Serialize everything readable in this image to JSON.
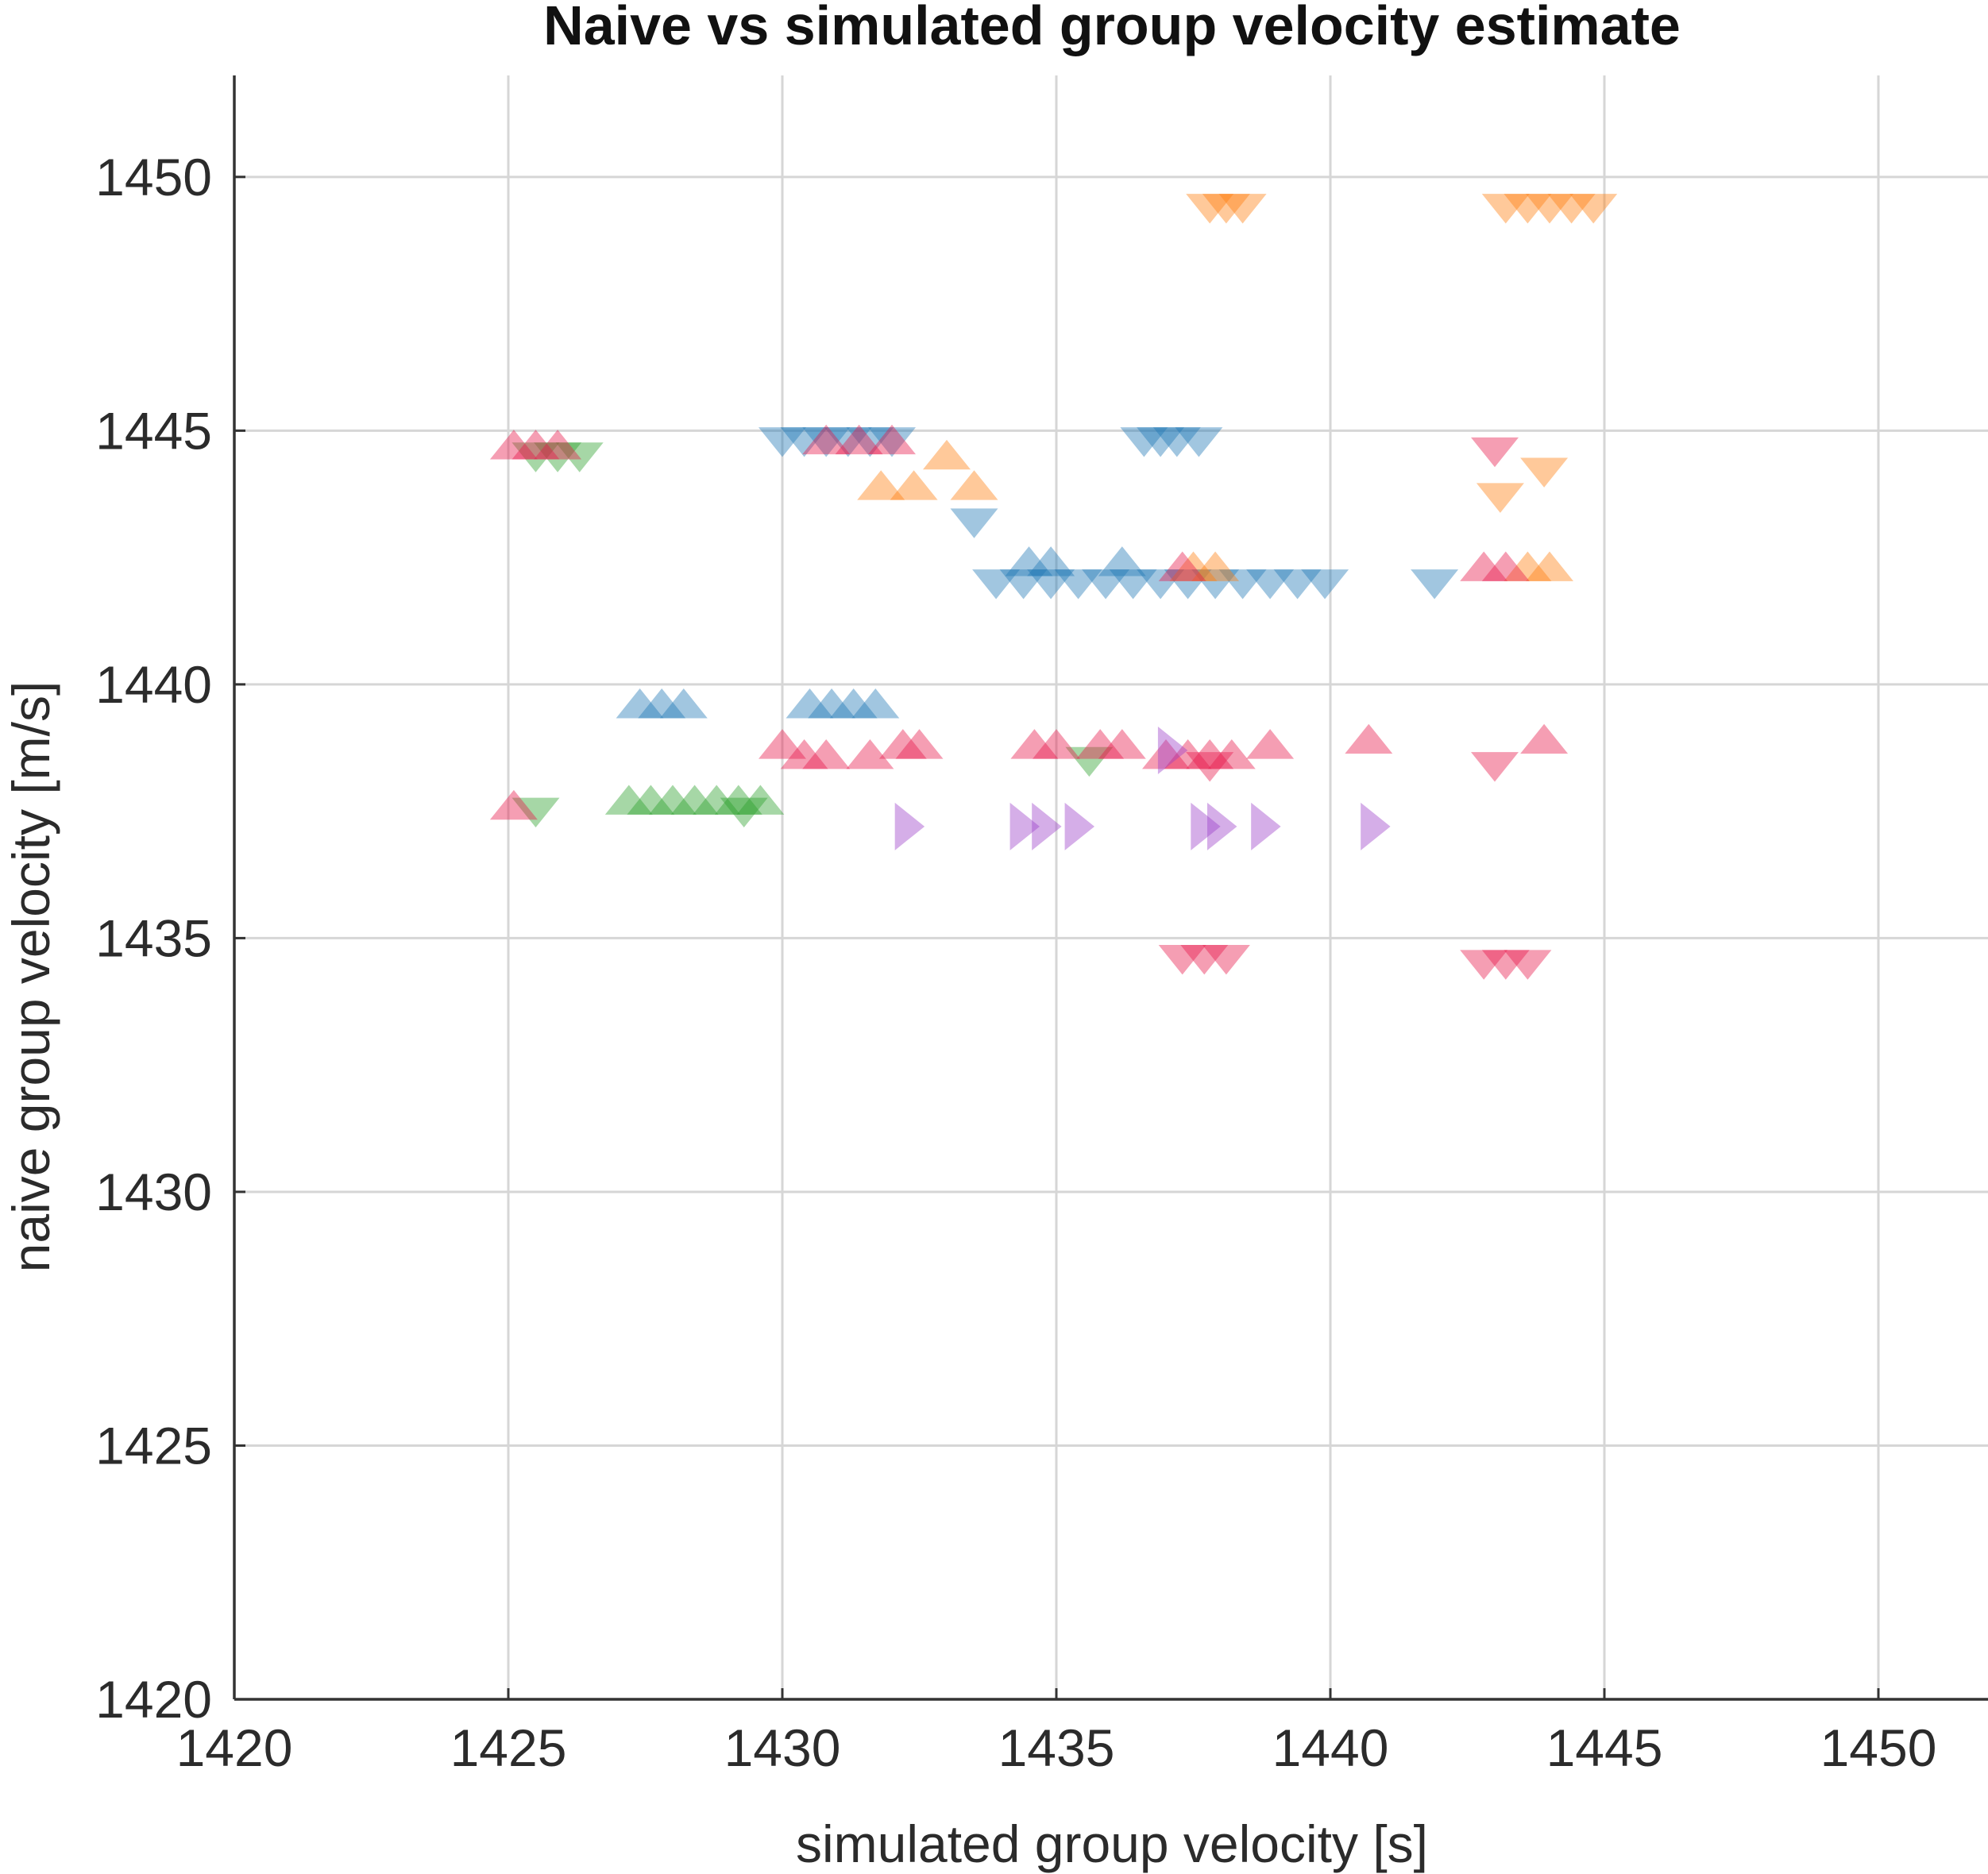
{
  "chart_data": {
    "type": "scatter",
    "title": "Naive vs simulated group velocity estimate",
    "xlabel": "simulated group velocity [s]",
    "ylabel": "naive group velocity [m/s]",
    "xlim": [
      1420,
      1452
    ],
    "ylim": [
      1420,
      1452
    ],
    "xticks": [
      1420,
      1425,
      1430,
      1435,
      1440,
      1445,
      1450
    ],
    "yticks": [
      1420,
      1425,
      1430,
      1435,
      1440,
      1445,
      1450
    ],
    "grid": true,
    "legend": "none",
    "series": [
      {
        "color": "#1f77b4",
        "points": [
          [
            1430.0,
            1444.8,
            "v"
          ],
          [
            1430.4,
            1444.8,
            "v"
          ],
          [
            1430.8,
            1444.8,
            "v"
          ],
          [
            1431.2,
            1444.8,
            "v"
          ],
          [
            1431.6,
            1444.8,
            "v"
          ],
          [
            1432.0,
            1444.8,
            "v"
          ],
          [
            1436.6,
            1444.8,
            "v"
          ],
          [
            1436.9,
            1444.8,
            "v"
          ],
          [
            1437.2,
            1444.8,
            "v"
          ],
          [
            1437.6,
            1444.8,
            "v"
          ],
          [
            1433.5,
            1443.2,
            "v"
          ],
          [
            1433.9,
            1442.0,
            "v"
          ],
          [
            1434.4,
            1442.0,
            "v"
          ],
          [
            1434.9,
            1442.0,
            "v"
          ],
          [
            1435.4,
            1442.0,
            "v"
          ],
          [
            1435.9,
            1442.0,
            "v"
          ],
          [
            1436.4,
            1442.0,
            "v"
          ],
          [
            1436.9,
            1442.0,
            "v"
          ],
          [
            1437.4,
            1442.0,
            "v"
          ],
          [
            1437.9,
            1442.0,
            "v"
          ],
          [
            1438.4,
            1442.0,
            "v"
          ],
          [
            1438.9,
            1442.0,
            "v"
          ],
          [
            1439.4,
            1442.0,
            "v"
          ],
          [
            1439.9,
            1442.0,
            "v"
          ],
          [
            1441.9,
            1442.0,
            "v"
          ],
          [
            1434.5,
            1442.4,
            "^"
          ],
          [
            1434.9,
            1442.4,
            "^"
          ],
          [
            1436.2,
            1442.4,
            "^"
          ],
          [
            1427.4,
            1439.6,
            "^"
          ],
          [
            1427.8,
            1439.6,
            "^"
          ],
          [
            1428.2,
            1439.6,
            "^"
          ],
          [
            1430.5,
            1439.6,
            "^"
          ],
          [
            1430.9,
            1439.6,
            "^"
          ],
          [
            1431.3,
            1439.6,
            "^"
          ],
          [
            1431.7,
            1439.6,
            "^"
          ]
        ]
      },
      {
        "color": "#ff7f0e",
        "points": [
          [
            1437.8,
            1449.4,
            "v"
          ],
          [
            1438.1,
            1449.4,
            "v"
          ],
          [
            1438.4,
            1449.4,
            "v"
          ],
          [
            1443.2,
            1449.4,
            "v"
          ],
          [
            1443.6,
            1449.4,
            "v"
          ],
          [
            1444.0,
            1449.4,
            "v"
          ],
          [
            1444.4,
            1449.4,
            "v"
          ],
          [
            1444.8,
            1449.4,
            "v"
          ],
          [
            1433.0,
            1444.5,
            "^"
          ],
          [
            1431.8,
            1443.9,
            "^"
          ],
          [
            1432.4,
            1443.9,
            "^"
          ],
          [
            1433.5,
            1443.9,
            "^"
          ],
          [
            1437.5,
            1442.3,
            "^"
          ],
          [
            1437.9,
            1442.3,
            "^"
          ],
          [
            1443.6,
            1442.3,
            "^"
          ],
          [
            1444.0,
            1442.3,
            "^"
          ],
          [
            1443.1,
            1443.7,
            "v"
          ],
          [
            1443.9,
            1444.2,
            "v"
          ]
        ]
      },
      {
        "color": "#2ca02c",
        "points": [
          [
            1425.5,
            1444.5,
            "v"
          ],
          [
            1425.9,
            1444.5,
            "v"
          ],
          [
            1426.3,
            1444.5,
            "v"
          ],
          [
            1427.2,
            1437.7,
            "^"
          ],
          [
            1427.6,
            1437.7,
            "^"
          ],
          [
            1428.0,
            1437.7,
            "^"
          ],
          [
            1428.4,
            1437.7,
            "^"
          ],
          [
            1428.8,
            1437.7,
            "^"
          ],
          [
            1429.2,
            1437.7,
            "^"
          ],
          [
            1429.6,
            1437.7,
            "^"
          ],
          [
            1425.5,
            1437.5,
            "v"
          ],
          [
            1429.3,
            1437.5,
            "v"
          ],
          [
            1435.6,
            1438.5,
            "v"
          ]
        ]
      },
      {
        "color": "#e8174b",
        "points": [
          [
            1425.1,
            1444.7,
            "^"
          ],
          [
            1425.5,
            1444.7,
            "^"
          ],
          [
            1425.9,
            1444.7,
            "^"
          ],
          [
            1430.8,
            1444.8,
            "^"
          ],
          [
            1431.4,
            1444.8,
            "^"
          ],
          [
            1432.0,
            1444.8,
            "^"
          ],
          [
            1437.3,
            1442.3,
            "^"
          ],
          [
            1442.8,
            1442.3,
            "^"
          ],
          [
            1443.2,
            1442.3,
            "^"
          ],
          [
            1443.0,
            1444.6,
            "v"
          ],
          [
            1430.0,
            1438.8,
            "^"
          ],
          [
            1430.4,
            1438.6,
            "^"
          ],
          [
            1430.8,
            1438.6,
            "^"
          ],
          [
            1431.6,
            1438.6,
            "^"
          ],
          [
            1432.2,
            1438.8,
            "^"
          ],
          [
            1432.5,
            1438.8,
            "^"
          ],
          [
            1434.6,
            1438.8,
            "^"
          ],
          [
            1435.0,
            1438.8,
            "^"
          ],
          [
            1435.8,
            1438.8,
            "^"
          ],
          [
            1436.2,
            1438.8,
            "^"
          ],
          [
            1437.0,
            1438.6,
            "^"
          ],
          [
            1437.4,
            1438.6,
            "^"
          ],
          [
            1437.8,
            1438.6,
            "^"
          ],
          [
            1438.2,
            1438.6,
            "^"
          ],
          [
            1438.9,
            1438.8,
            "^"
          ],
          [
            1440.7,
            1438.9,
            "^"
          ],
          [
            1443.9,
            1438.9,
            "^"
          ],
          [
            1443.0,
            1438.4,
            "v"
          ],
          [
            1437.8,
            1438.4,
            "v"
          ],
          [
            1425.1,
            1437.6,
            "^"
          ],
          [
            1437.3,
            1434.6,
            "v"
          ],
          [
            1437.7,
            1434.6,
            "v"
          ],
          [
            1438.1,
            1434.6,
            "v"
          ],
          [
            1442.8,
            1434.5,
            "v"
          ],
          [
            1443.2,
            1434.5,
            "v"
          ],
          [
            1443.6,
            1434.5,
            "v"
          ]
        ]
      },
      {
        "color": "#9b3fc8",
        "points": [
          [
            1432.3,
            1437.2,
            ">"
          ],
          [
            1434.4,
            1437.2,
            ">"
          ],
          [
            1434.8,
            1437.2,
            ">"
          ],
          [
            1435.4,
            1437.2,
            ">"
          ],
          [
            1437.7,
            1437.2,
            ">"
          ],
          [
            1438.0,
            1437.2,
            ">"
          ],
          [
            1438.8,
            1437.2,
            ">"
          ],
          [
            1440.8,
            1437.2,
            ">"
          ],
          [
            1437.1,
            1438.7,
            ">"
          ]
        ]
      }
    ]
  }
}
